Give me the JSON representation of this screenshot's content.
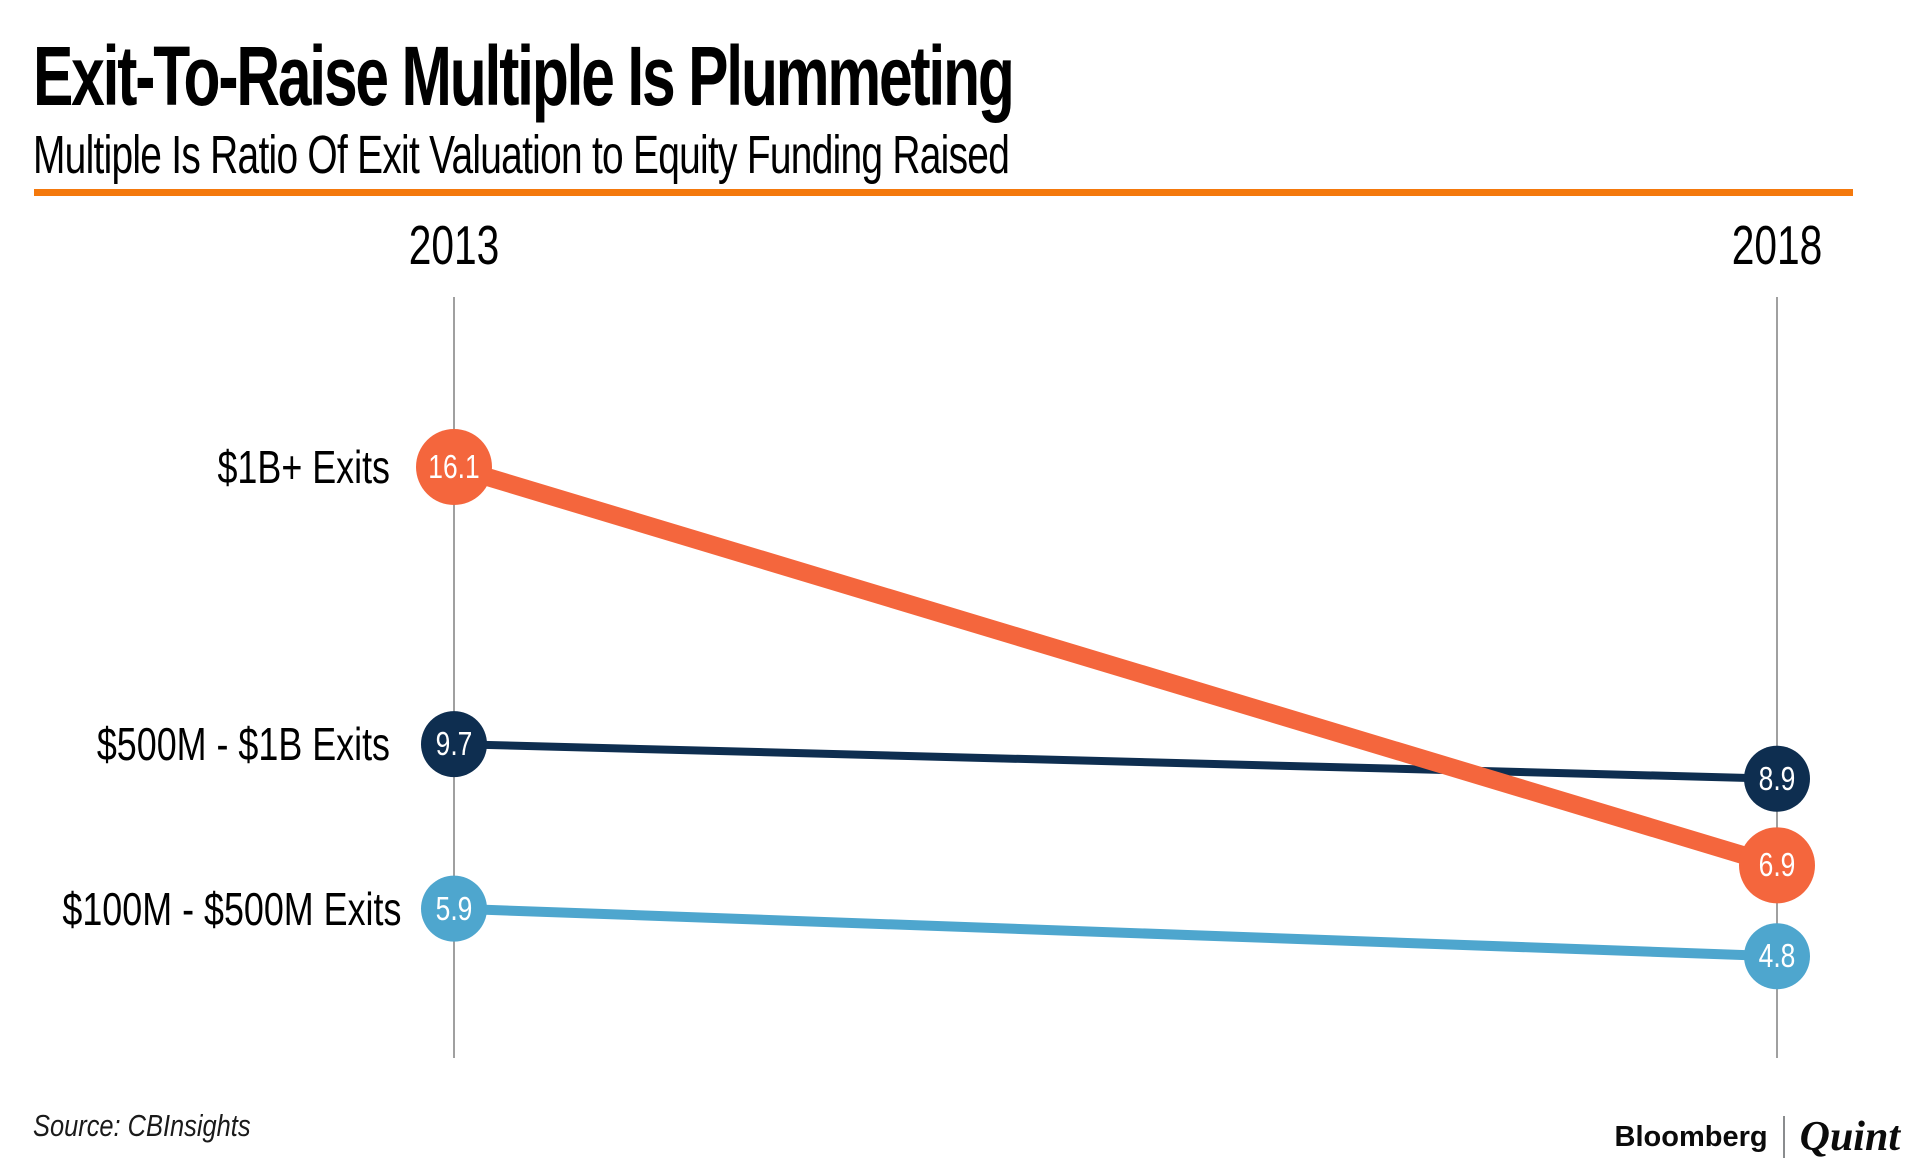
{
  "header": {
    "title": "Exit-To-Raise Multiple Is Plummeting",
    "subtitle": "Multiple Is Ratio Of Exit Valuation to Equity Funding Raised",
    "accent_color": "#F4790D"
  },
  "chart_data": {
    "type": "line",
    "variant": "slope-chart",
    "title": "Exit-To-Raise Multiple Is Plummeting",
    "subtitle": "Multiple Is Ratio Of Exit Valuation to Equity Funding Raised",
    "x": [
      "2013",
      "2018"
    ],
    "series": [
      {
        "name": "$1B+ Exits",
        "values": [
          16.1,
          6.9
        ],
        "color": "#F4663D"
      },
      {
        "name": "$500M - $1B Exits",
        "values": [
          9.7,
          8.9
        ],
        "color": "#0E2E50"
      },
      {
        "name": "$100M - $500M Exits",
        "values": [
          5.9,
          4.8
        ],
        "color": "#4EA6CE"
      }
    ],
    "value_labels_shown": true,
    "axis_line_color": "#A0A0A0",
    "value_text_color": "#FFFFFF",
    "label_text_color": "#000000",
    "grid": false,
    "legend_position": "left-inline"
  },
  "footer": {
    "source": "Source: CBInsights",
    "brand_left": "Bloomberg",
    "brand_right": "Quint"
  }
}
